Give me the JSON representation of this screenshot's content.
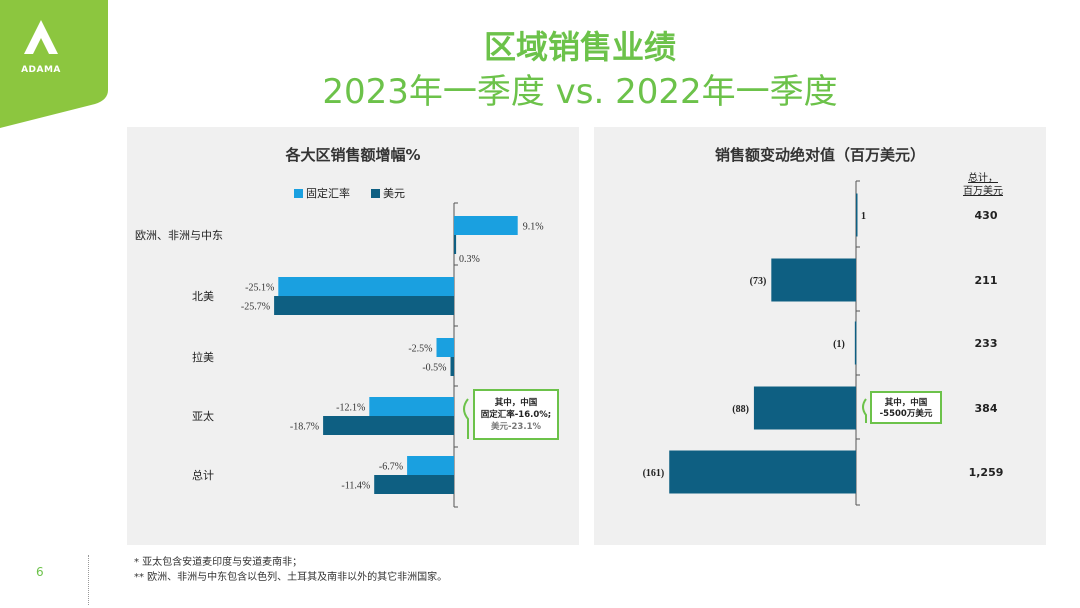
{
  "brand": {
    "logo_text": "ADAMA",
    "accent_color": "#6cc24a"
  },
  "title": {
    "line1": "区域销售业绩",
    "line2": "2023年一季度 vs. 2022年一季度"
  },
  "colors": {
    "fixed_fx": "#1aa0e0",
    "usd": "#0e5f82",
    "callout_border": "#6cc24a"
  },
  "chart_data": [
    {
      "type": "bar",
      "orientation": "horizontal",
      "title": "各大区销售额增幅%",
      "legend": [
        "固定汇率",
        "美元"
      ],
      "legend_position": "top-left",
      "categories": [
        "欧洲、非洲与中东",
        "北美",
        "拉美",
        "亚太",
        "总计"
      ],
      "series": [
        {
          "name": "固定汇率",
          "values": [
            9.1,
            -25.1,
            -2.5,
            -12.1,
            -6.7
          ],
          "labels": [
            "9.1%",
            "-25.1%",
            "-2.5%",
            "-12.1%",
            "-6.7%"
          ]
        },
        {
          "name": "美元",
          "values": [
            0.3,
            -25.7,
            -0.5,
            -18.7,
            -11.4
          ],
          "labels": [
            "0.3%",
            "-25.7%",
            "-0.5%",
            "-18.7%",
            "-11.4%"
          ]
        }
      ],
      "annotation": {
        "lines": [
          "其中，中国",
          "固定汇率-16.0%;",
          "美元-23.1%"
        ],
        "category": "亚太"
      }
    },
    {
      "type": "bar",
      "orientation": "horizontal",
      "title": "销售额变动绝对值（百万美元）",
      "total_header": [
        "总计，",
        "百万美元"
      ],
      "categories": [
        "欧洲、非洲与中东",
        "北美",
        "拉美",
        "亚太",
        "总计"
      ],
      "values": [
        1,
        -73,
        -1,
        -88,
        -161
      ],
      "labels": [
        "1",
        "(73)",
        "(1)",
        "(88)",
        "(161)"
      ],
      "totals": [
        "430",
        "211",
        "233",
        "384",
        "1,259"
      ],
      "annotation": {
        "lines": [
          "其中，中国",
          "-5500万美元"
        ],
        "category": "亚太"
      }
    }
  ],
  "footnotes": [
    "* 亚太包含安道麦印度与安道麦南非；",
    "** 欧洲、非洲与中东包含以色列、土耳其及南非以外的其它非洲国家。"
  ],
  "page_number": "6"
}
